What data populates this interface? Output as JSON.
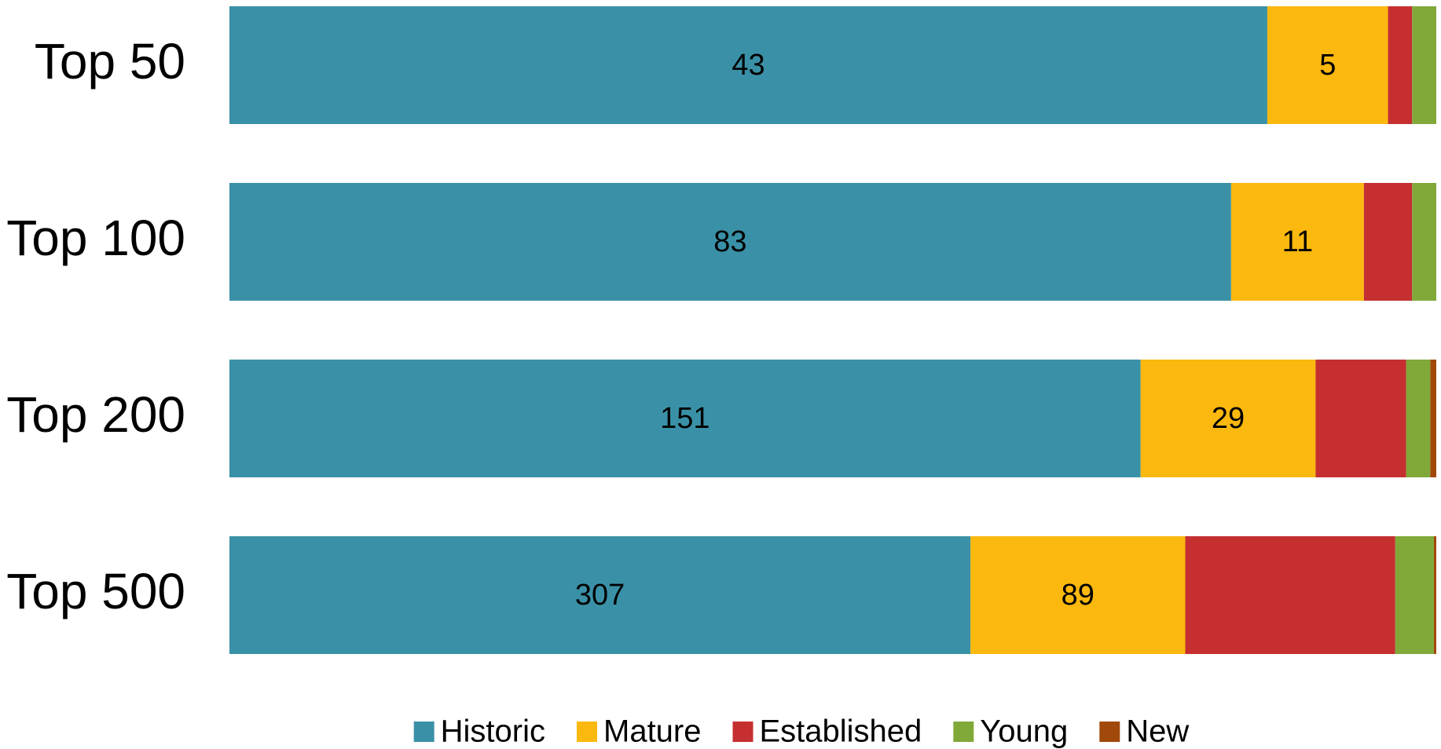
{
  "chart_data": {
    "type": "stacked-bar-100",
    "orientation": "horizontal",
    "categories": [
      "Top 50",
      "Top 100",
      "Top 200",
      "Top 500"
    ],
    "series": [
      {
        "name": "Historic",
        "color": "#3a91a7",
        "values": [
          43,
          83,
          151,
          307
        ],
        "labels": true
      },
      {
        "name": "Mature",
        "color": "#fbb80f",
        "values": [
          5,
          11,
          29,
          89
        ],
        "labels": true
      },
      {
        "name": "Established",
        "color": "#c52f30",
        "values": [
          1,
          4,
          15,
          87
        ],
        "labels": false
      },
      {
        "name": "Young",
        "color": "#80a93a",
        "values": [
          1,
          2,
          4,
          16
        ],
        "labels": false
      },
      {
        "name": "New",
        "color": "#a0490b",
        "values": [
          0,
          0,
          1,
          1
        ],
        "labels": false
      }
    ],
    "legend": "bottom",
    "grid": false
  }
}
